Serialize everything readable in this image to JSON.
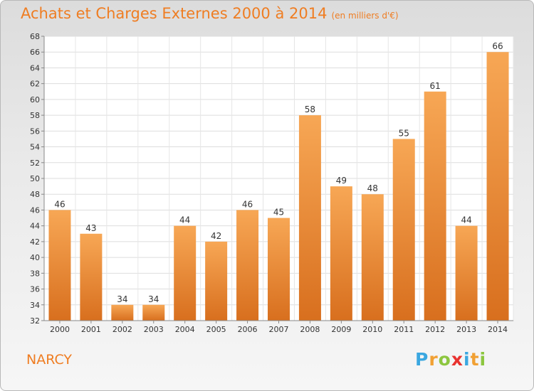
{
  "title": "Achats et Charges Externes 2000 à 2014",
  "unit": "(en milliers d'€)",
  "place": "NARCY",
  "logo": {
    "letters": [
      "P",
      "r",
      "o",
      "x",
      "i",
      "t",
      "i"
    ],
    "colors": [
      "#3aa7e0",
      "#f1a033",
      "#8cc63f",
      "#e8322f",
      "#3aa7e0",
      "#f1a033",
      "#8cc63f"
    ]
  },
  "colors": {
    "bar": "#ef8a2e",
    "text": "#ef7d22"
  },
  "chart_data": {
    "type": "bar",
    "title": "Achats et Charges Externes 2000 à 2014",
    "subtitle": "(en milliers d'€)",
    "categories": [
      "2000",
      "2001",
      "2002",
      "2003",
      "2004",
      "2005",
      "2006",
      "2007",
      "2008",
      "2009",
      "2010",
      "2011",
      "2012",
      "2013",
      "2014"
    ],
    "values": [
      46,
      43,
      34,
      34,
      44,
      42,
      46,
      45,
      58,
      49,
      48,
      55,
      61,
      44,
      66
    ],
    "ylim": [
      32,
      68
    ],
    "yticks": [
      32,
      34,
      36,
      38,
      40,
      42,
      44,
      46,
      48,
      50,
      52,
      54,
      56,
      58,
      60,
      62,
      64,
      66,
      68
    ],
    "grid": true
  }
}
